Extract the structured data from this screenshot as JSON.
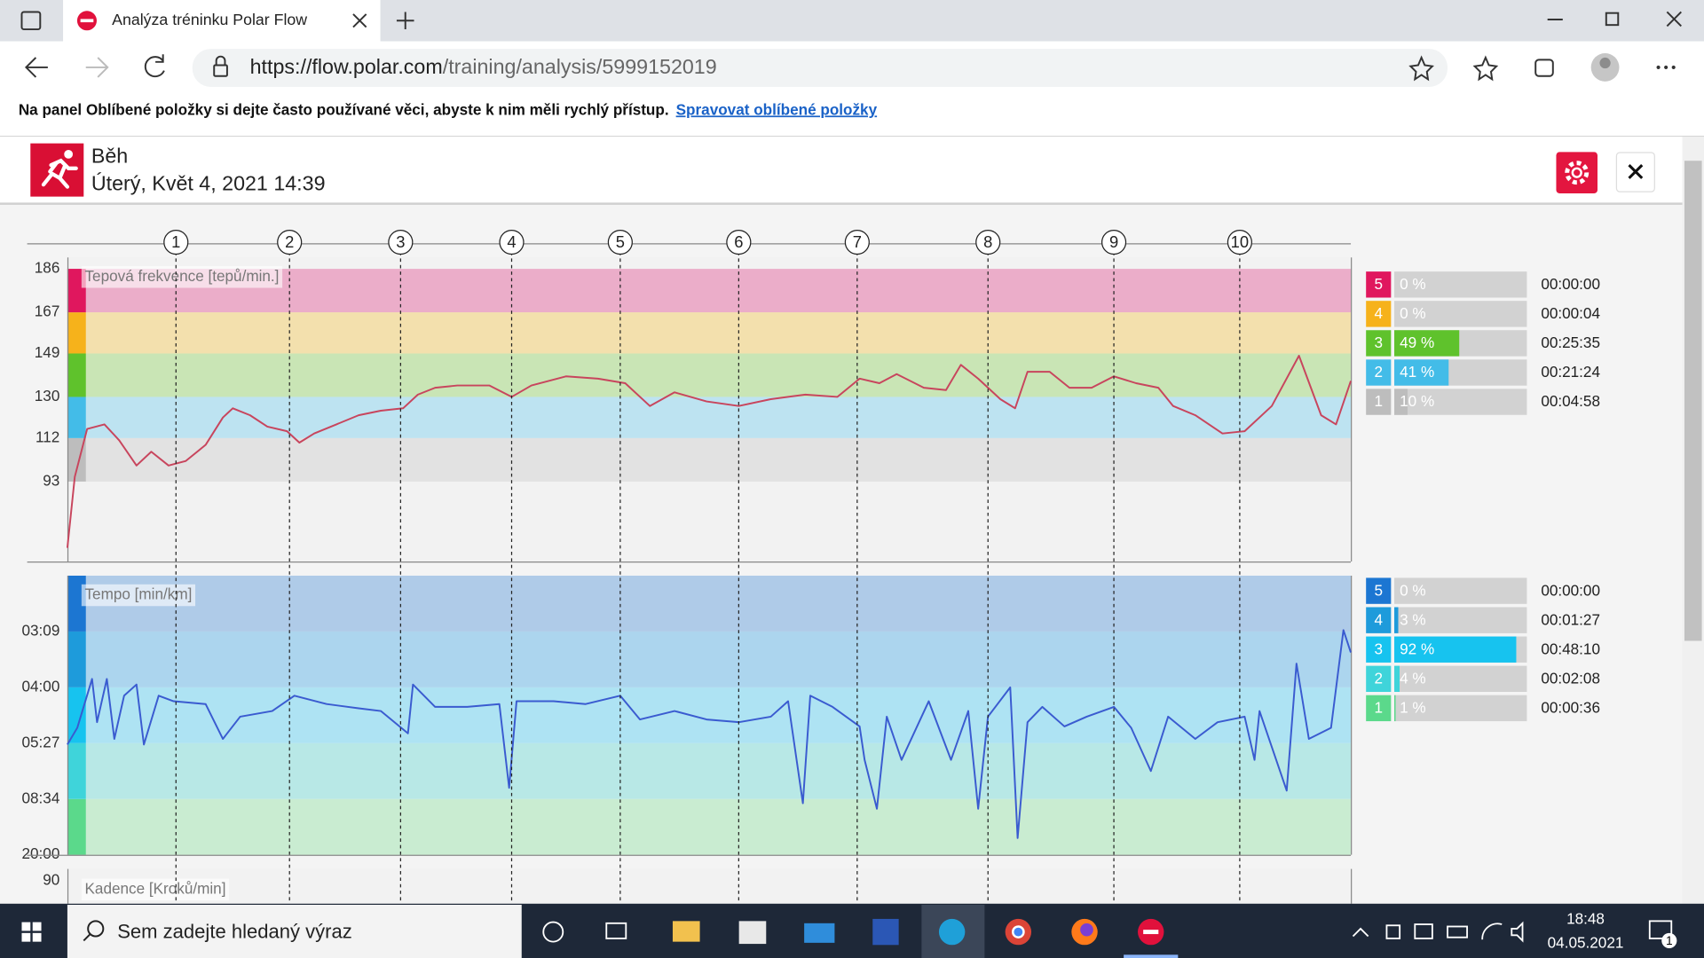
{
  "browser": {
    "tab_title": "Analýza tréninku Polar Flow",
    "url_host": "https://flow.polar.com",
    "url_path": "/training/analysis/5999152019",
    "favorites_hint": "Na panel Oblíbené položky si dejte často používané věci, abyste k nim měli rychlý přístup.",
    "favorites_link": "Spravovat oblíbené položky"
  },
  "header": {
    "sport": "Běh",
    "date": "Úterý, Květ 4, 2021 14:39"
  },
  "chart_data": [
    {
      "type": "line",
      "title": "Tepová frekvence [tepů/min.]",
      "color": "#c8455d",
      "x": [
        0,
        0.3,
        0.8,
        1.5,
        2.1,
        2.8,
        3.4,
        4.1,
        4.8,
        5.6,
        6.3,
        6.7,
        7.4,
        8.1,
        8.9,
        9.4,
        10.0,
        10.9,
        11.8,
        12.7,
        13.6,
        14.2,
        14.9,
        15.8,
        17.1,
        18.0,
        18.8,
        20.2,
        21.5,
        22.6,
        23.6,
        24.6,
        25.9,
        27.2,
        28.5,
        29.9,
        31.2,
        32.1,
        32.9,
        33.6,
        34.7,
        35.6,
        36.2,
        36.9,
        37.8,
        38.4,
        38.9,
        39.8,
        40.6,
        41.5,
        42.4,
        43.3,
        44.2,
        44.8,
        45.7,
        46.8,
        47.7,
        48.8,
        49.9,
        50.8,
        51.4,
        52.0
      ],
      "values": [
        64,
        95,
        116,
        118,
        111,
        100,
        106,
        100,
        102,
        109,
        121,
        125,
        122,
        117,
        115,
        110,
        114,
        118,
        122,
        124,
        125,
        131,
        134,
        135,
        135,
        130,
        135,
        139,
        138,
        136,
        126,
        132,
        128,
        126,
        129,
        131,
        130,
        138,
        136,
        140,
        134,
        133,
        144,
        138,
        129,
        125,
        141,
        141,
        134,
        134,
        139,
        136,
        134,
        126,
        122,
        114,
        115,
        126,
        148,
        122,
        118,
        137
      ],
      "xlim": [
        0,
        52
      ],
      "ylim": [
        58,
        191
      ],
      "yticks": [
        93,
        112,
        130,
        149,
        167,
        186
      ],
      "laps": {
        "labels": [
          "1",
          "2",
          "3",
          "4",
          "5",
          "6",
          "7",
          "8",
          "9",
          "10"
        ],
        "x": [
          4.4,
          9.0,
          13.5,
          18.0,
          22.4,
          27.2,
          32.0,
          37.3,
          42.4,
          47.5
        ]
      },
      "zones": {
        "labels": [
          "5",
          "4",
          "3",
          "2",
          "1"
        ],
        "percent": [
          0,
          0,
          49,
          41,
          10
        ],
        "percent_labels": [
          "0 %",
          "0 %",
          "49 %",
          "41 %",
          "10 %"
        ],
        "durations": [
          "00:00:00",
          "00:00:04",
          "00:25:35",
          "00:21:24",
          "00:04:58"
        ],
        "colors": [
          "#e0175e",
          "#f6b21b",
          "#5fc22c",
          "#43bce8",
          "#bdbdbd"
        ],
        "band_colors": [
          "#ebadc9",
          "#f3e0ad",
          "#c9e5b5",
          "#bde3f1",
          "#e2e2e2"
        ]
      }
    },
    {
      "type": "line",
      "title": "Tempo [min/km]",
      "color": "#3a5bd0",
      "x": [
        0,
        0.4,
        1.0,
        1.2,
        1.6,
        1.9,
        2.3,
        2.8,
        3.1,
        3.7,
        4.3,
        5.6,
        6.3,
        7.0,
        8.3,
        9.2,
        10.5,
        11.8,
        12.7,
        13.8,
        14.0,
        14.9,
        16.2,
        17.5,
        17.9,
        18.2,
        19.7,
        21.0,
        22.4,
        23.2,
        24.6,
        25.9,
        27.2,
        28.5,
        29.2,
        29.8,
        30.1,
        31.0,
        32.1,
        32.3,
        32.8,
        33.2,
        33.8,
        34.9,
        35.8,
        36.5,
        36.9,
        37.3,
        38.2,
        38.5,
        38.9,
        39.5,
        40.4,
        41.3,
        42.4,
        43.1,
        43.9,
        44.6,
        45.7,
        46.6,
        47.7,
        48.1,
        48.3,
        49.4,
        49.8,
        50.3,
        51.2,
        51.7,
        52.0
      ],
      "values": [
        10.9,
        12.1,
        15.6,
        12.5,
        15.6,
        11.3,
        14.4,
        15.2,
        10.9,
        14.4,
        14.0,
        13.8,
        11.3,
        12.9,
        13.3,
        14.4,
        13.8,
        13.5,
        13.3,
        11.7,
        15.2,
        13.6,
        13.6,
        13.8,
        7.8,
        14.0,
        14.0,
        13.8,
        14.4,
        12.7,
        13.3,
        12.7,
        12.5,
        12.9,
        14.0,
        6.7,
        14.4,
        13.6,
        12.2,
        9.8,
        6.3,
        12.9,
        9.8,
        14.0,
        9.8,
        13.3,
        6.3,
        12.9,
        15.0,
        4.2,
        12.5,
        13.6,
        12.2,
        12.9,
        13.6,
        12.1,
        9.0,
        12.9,
        11.3,
        12.5,
        12.9,
        9.8,
        13.3,
        7.6,
        16.7,
        11.3,
        12.1,
        19.1,
        17.5
      ],
      "xlim": [
        0,
        52
      ],
      "ylim": [
        3,
        23
      ],
      "yticks": [
        {
          "value": 3,
          "label": "20:00"
        },
        {
          "value": 7,
          "label": "08:34"
        },
        {
          "value": 11,
          "label": "05:27"
        },
        {
          "value": 15,
          "label": "04:00"
        },
        {
          "value": 19,
          "label": "03:09"
        }
      ],
      "zones": {
        "labels": [
          "5",
          "4",
          "3",
          "2",
          "1"
        ],
        "percent": [
          0,
          3,
          92,
          4,
          1
        ],
        "percent_labels": [
          "0 %",
          "3 %",
          "92 %",
          "4 %",
          "1 %"
        ],
        "durations": [
          "00:00:00",
          "00:01:27",
          "00:48:10",
          "00:02:08",
          "00:00:36"
        ],
        "colors": [
          "#1c76d2",
          "#1e9bdb",
          "#17c3ef",
          "#3fd4da",
          "#5bd98b"
        ],
        "band_colors": [
          "#afcbe8",
          "#acd5ee",
          "#aee3f3",
          "#b8e8e6",
          "#c9ecd1"
        ]
      }
    },
    {
      "type": "line",
      "title": "Kadence [Kroků/min]",
      "yticks": [
        90
      ]
    }
  ],
  "taskbar": {
    "search": "Sem zadejte hledaný výraz",
    "time": "18:48",
    "date": "04.05.2021",
    "notifications": "1"
  }
}
